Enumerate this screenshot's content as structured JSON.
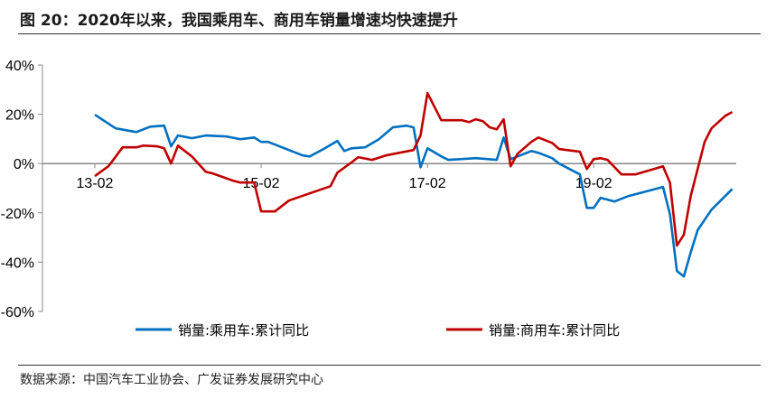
{
  "title": "图 20：2020年以来，我国乘用车、商用车销量增速均快速提升",
  "source": "数据来源：中国汽车工业协会、广发证券发展研究中心",
  "chart_data": {
    "type": "line",
    "title": "图 20：2020年以来，我国乘用车、商用车销量增速均快速提升",
    "xlabel": "",
    "ylabel": "",
    "ylim": [
      -60,
      40
    ],
    "yticks": [
      "40%",
      "20%",
      "0%",
      "-20%",
      "-40%",
      "-60%"
    ],
    "ytick_values": [
      40,
      20,
      0,
      -20,
      -40,
      -60
    ],
    "xticks": [
      "13-02",
      "15-02",
      "17-02",
      "19-02"
    ],
    "xtick_dates": [
      "2013-02",
      "2015-02",
      "2017-02",
      "2019-02"
    ],
    "grid": false,
    "legend": "bottom",
    "series": [
      {
        "name": "销量:乘用车:累计同比",
        "color": "#0070C0",
        "points": [
          [
            "2013-02",
            19.8
          ],
          [
            "2013-05",
            14.3
          ],
          [
            "2013-08",
            12.8
          ],
          [
            "2013-10",
            15.0
          ],
          [
            "2013-12",
            15.4
          ],
          [
            "2014-01",
            7.0
          ],
          [
            "2014-02",
            11.4
          ],
          [
            "2014-04",
            10.3
          ],
          [
            "2014-06",
            11.4
          ],
          [
            "2014-09",
            11.0
          ],
          [
            "2014-11",
            9.9
          ],
          [
            "2015-01",
            10.6
          ],
          [
            "2015-02",
            8.8
          ],
          [
            "2015-03",
            8.8
          ],
          [
            "2015-06",
            5.5
          ],
          [
            "2015-08",
            3.3
          ],
          [
            "2015-09",
            2.9
          ],
          [
            "2015-11",
            5.9
          ],
          [
            "2016-01",
            9.2
          ],
          [
            "2016-02",
            5.1
          ],
          [
            "2016-03",
            6.2
          ],
          [
            "2016-05",
            6.6
          ],
          [
            "2016-07",
            9.9
          ],
          [
            "2016-09",
            14.7
          ],
          [
            "2016-11",
            15.4
          ],
          [
            "2016-12",
            14.7
          ],
          [
            "2017-01",
            -1.5
          ],
          [
            "2017-02",
            6.2
          ],
          [
            "2017-04",
            2.9
          ],
          [
            "2017-05",
            1.5
          ],
          [
            "2017-09",
            2.2
          ],
          [
            "2017-12",
            1.5
          ],
          [
            "2018-01",
            10.6
          ],
          [
            "2018-02",
            1.8
          ],
          [
            "2018-05",
            5.1
          ],
          [
            "2018-06",
            4.4
          ],
          [
            "2018-08",
            2.2
          ],
          [
            "2018-09",
            0.0
          ],
          [
            "2018-12",
            -4.4
          ],
          [
            "2019-01",
            -18.0
          ],
          [
            "2019-02",
            -18.0
          ],
          [
            "2019-03",
            -13.9
          ],
          [
            "2019-05",
            -15.4
          ],
          [
            "2019-07",
            -13.2
          ],
          [
            "2019-12",
            -9.5
          ],
          [
            "2020-01",
            -20.5
          ],
          [
            "2020-02",
            -43.6
          ],
          [
            "2020-03",
            -45.8
          ],
          [
            "2020-04",
            -36.0
          ],
          [
            "2020-05",
            -27.0
          ],
          [
            "2020-07",
            -18.7
          ],
          [
            "2020-10",
            -10.3
          ]
        ]
      },
      {
        "name": "销量:商用车:累计同比",
        "color": "#C00000",
        "points": [
          [
            "2013-02",
            -5.1
          ],
          [
            "2013-04",
            -1.0
          ],
          [
            "2013-06",
            6.6
          ],
          [
            "2013-08",
            6.6
          ],
          [
            "2013-09",
            7.3
          ],
          [
            "2013-11",
            7.0
          ],
          [
            "2013-12",
            6.2
          ],
          [
            "2014-01",
            0.0
          ],
          [
            "2014-02",
            7.3
          ],
          [
            "2014-04",
            2.9
          ],
          [
            "2014-06",
            -3.3
          ],
          [
            "2014-07",
            -4.0
          ],
          [
            "2014-10",
            -7.0
          ],
          [
            "2014-11",
            -7.7
          ],
          [
            "2015-01",
            -7.7
          ],
          [
            "2015-02",
            -19.4
          ],
          [
            "2015-04",
            -19.4
          ],
          [
            "2015-06",
            -15.0
          ],
          [
            "2015-09",
            -12.1
          ],
          [
            "2015-12",
            -9.2
          ],
          [
            "2016-01",
            -3.7
          ],
          [
            "2016-03",
            0.4
          ],
          [
            "2016-04",
            2.6
          ],
          [
            "2016-06",
            1.5
          ],
          [
            "2016-08",
            3.3
          ],
          [
            "2016-12",
            5.5
          ],
          [
            "2017-01",
            11.4
          ],
          [
            "2017-02",
            28.6
          ],
          [
            "2017-04",
            17.6
          ],
          [
            "2017-07",
            17.6
          ],
          [
            "2017-08",
            16.8
          ],
          [
            "2017-09",
            18.0
          ],
          [
            "2017-10",
            17.2
          ],
          [
            "2017-11",
            14.7
          ],
          [
            "2017-12",
            13.9
          ],
          [
            "2018-01",
            18.0
          ],
          [
            "2018-02",
            -1.1
          ],
          [
            "2018-03",
            4.0
          ],
          [
            "2018-05",
            8.8
          ],
          [
            "2018-06",
            10.6
          ],
          [
            "2018-08",
            8.4
          ],
          [
            "2018-09",
            5.9
          ],
          [
            "2018-12",
            4.8
          ],
          [
            "2019-01",
            -2.2
          ],
          [
            "2019-02",
            1.8
          ],
          [
            "2019-03",
            2.2
          ],
          [
            "2019-04",
            1.5
          ],
          [
            "2019-06",
            -4.4
          ],
          [
            "2019-08",
            -4.4
          ],
          [
            "2019-12",
            -1.1
          ],
          [
            "2020-01",
            -7.7
          ],
          [
            "2020-02",
            -33.3
          ],
          [
            "2020-03",
            -28.9
          ],
          [
            "2020-04",
            -13.2
          ],
          [
            "2020-06",
            8.8
          ],
          [
            "2020-07",
            14.3
          ],
          [
            "2020-09",
            19.4
          ],
          [
            "2020-10",
            20.9
          ]
        ]
      }
    ]
  }
}
